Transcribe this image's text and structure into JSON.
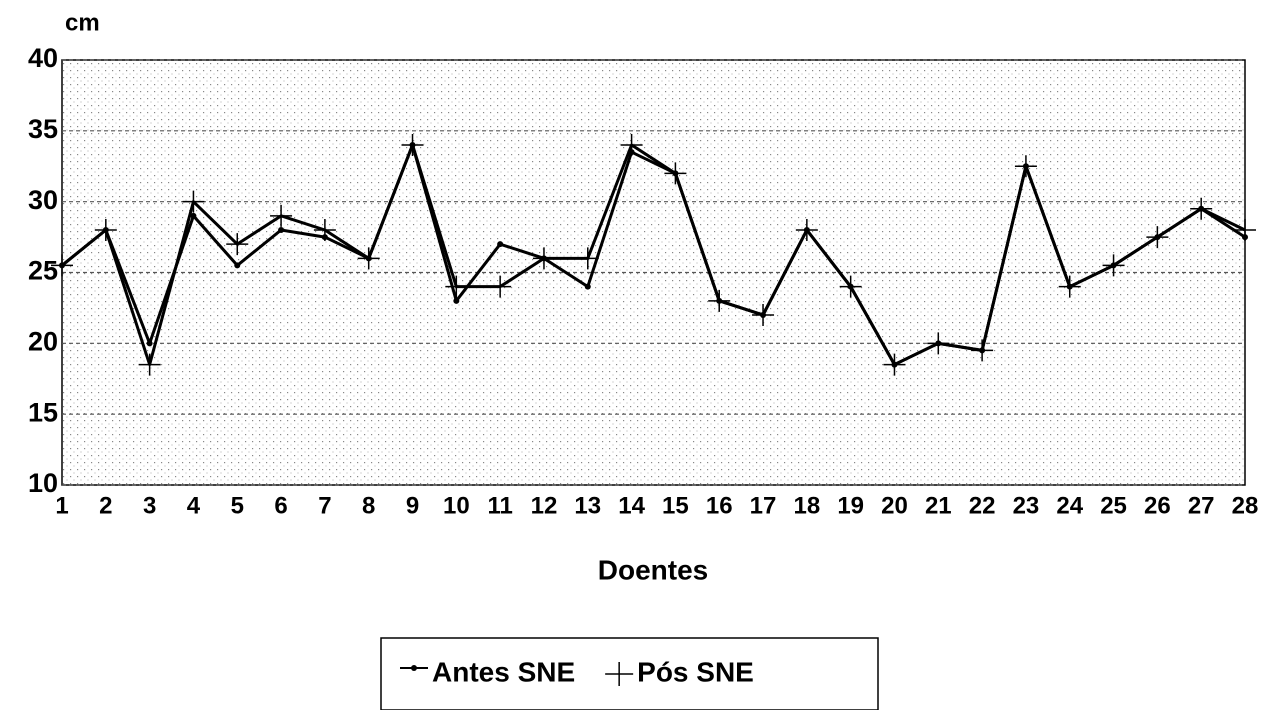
{
  "chart_data": {
    "type": "line",
    "y_label": "cm",
    "x_label": "Doentes",
    "categories": [
      "1",
      "2",
      "3",
      "4",
      "5",
      "6",
      "7",
      "8",
      "9",
      "10",
      "11",
      "12",
      "13",
      "14",
      "15",
      "16",
      "17",
      "18",
      "19",
      "20",
      "21",
      "22",
      "23",
      "24",
      "25",
      "26",
      "27",
      "28"
    ],
    "series": [
      {
        "name": "Antes SNE",
        "color": "#000000",
        "marker": "dot",
        "values": [
          25.5,
          28,
          20,
          29,
          25.5,
          28,
          27.5,
          26,
          34,
          23,
          27,
          26,
          24,
          33.5,
          32,
          23,
          22,
          28,
          24,
          18.5,
          20,
          19.5,
          32.5,
          24,
          25.5,
          27.5,
          29.5,
          27.5
        ]
      },
      {
        "name": "Pós SNE",
        "color": "#000000",
        "marker": "plus",
        "values": [
          25.5,
          28,
          18.5,
          30,
          27,
          29,
          28,
          26,
          34,
          24,
          24,
          26,
          26,
          34,
          32,
          23,
          22,
          28,
          24,
          18.5,
          20,
          19.5,
          32.5,
          24,
          25.5,
          27.5,
          29.5,
          28
        ]
      }
    ],
    "ylim": [
      10,
      40
    ],
    "yticks": [
      10,
      15,
      20,
      25,
      30,
      35,
      40
    ],
    "grid": true
  }
}
